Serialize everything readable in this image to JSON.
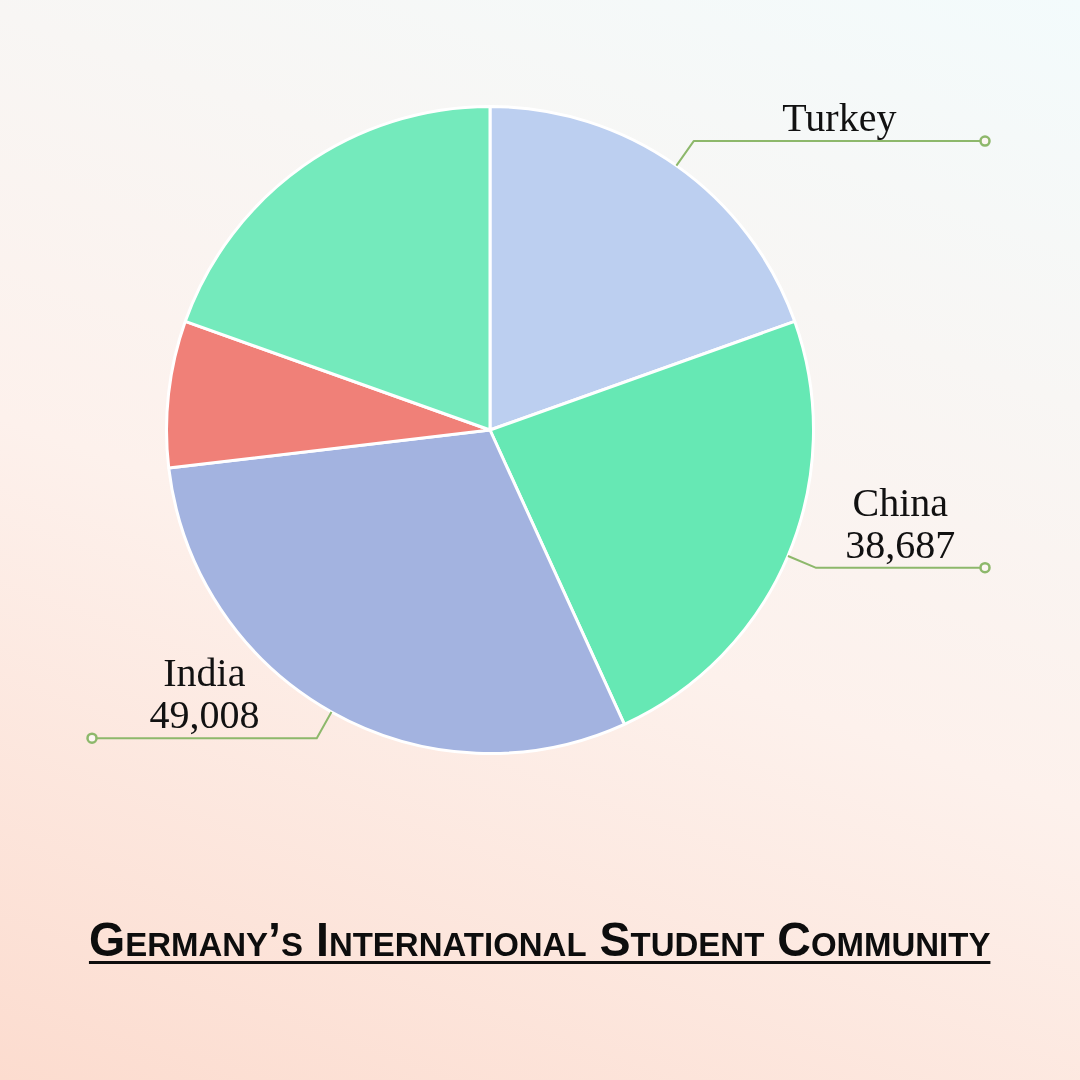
{
  "chart_data": {
    "type": "pie",
    "title": "Germany’s International Student Community",
    "categories": [
      "Turkey",
      "China",
      "India",
      null,
      null
    ],
    "values": [
      32000,
      38687,
      49008,
      12000,
      32000
    ],
    "colors": [
      "#bccff0",
      "#66e8b4",
      "#a3b3e0",
      "#f08078",
      "#74eabc"
    ],
    "value_labels": [
      null,
      "38,687",
      "49,008",
      null,
      null
    ],
    "legend": false
  }
}
